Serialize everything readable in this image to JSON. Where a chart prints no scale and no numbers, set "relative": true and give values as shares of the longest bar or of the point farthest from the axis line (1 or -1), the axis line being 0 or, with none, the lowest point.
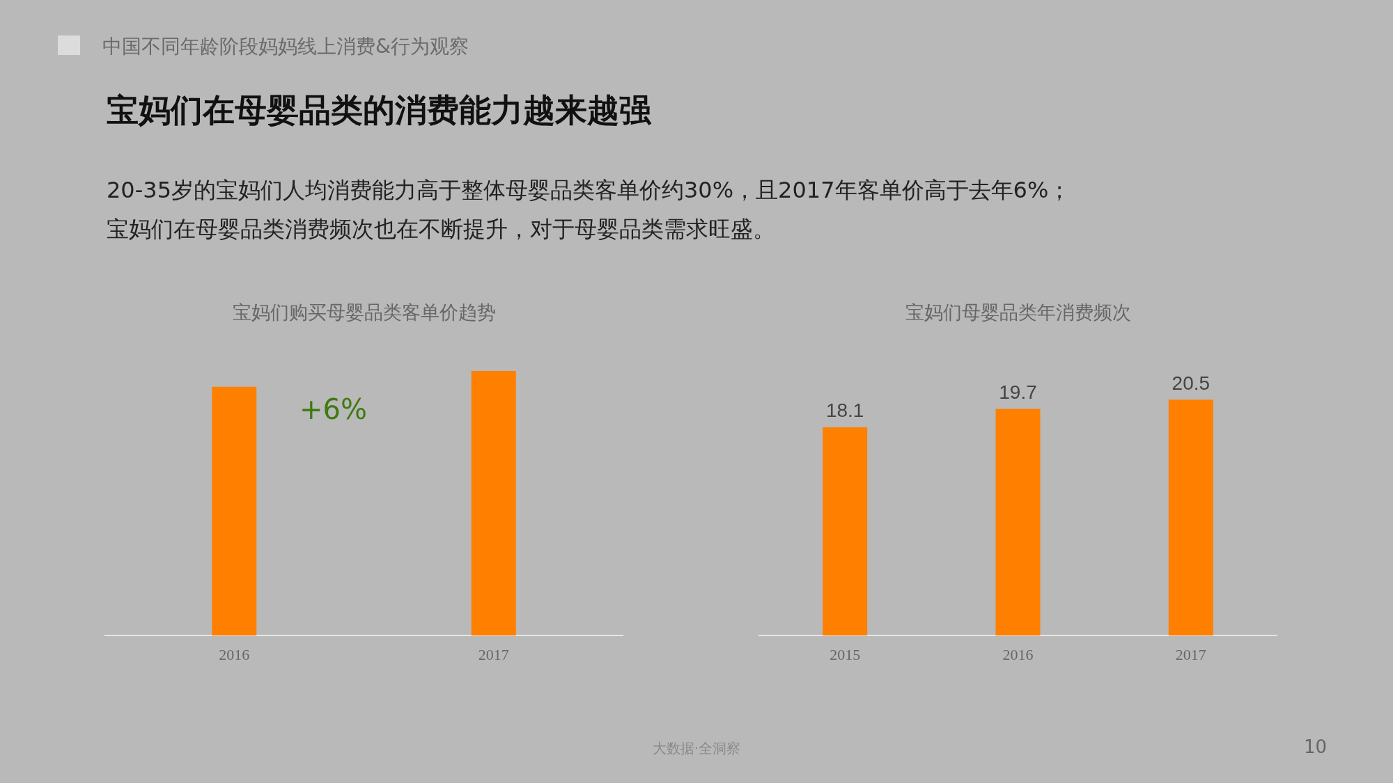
{
  "chart_data": [
    {
      "type": "bar",
      "title": "宝妈们购买母婴品类客单价趋势",
      "categories": [
        "2016",
        "2017"
      ],
      "relative": true,
      "values": [
        0.94,
        1
      ],
      "color": "#ff7f00",
      "grid": false,
      "annotations": [
        "中国不同年龄阶段妈妈线上消费&行为观察",
        "宝妈们在母婴品类的消费能力越来越强",
        "20-35岁的宝妈们人均消费能力高于整体母婴品类客单价约30%，且2017年客单价高于去年6%；",
        "宝妈们在母婴品类消费频次也在不断提升，对于母婴品类需求旺盛。",
        "+6%",
        "大数据·全洞察",
        "10"
      ]
    },
    {
      "type": "bar",
      "title": "宝妈们母婴品类年消费频次",
      "categories": [
        "2015",
        "2016",
        "2017"
      ],
      "values": [
        18.1,
        19.7,
        20.5
      ],
      "color": "#ff7f00",
      "data_labels": true,
      "grid": false
    }
  ]
}
